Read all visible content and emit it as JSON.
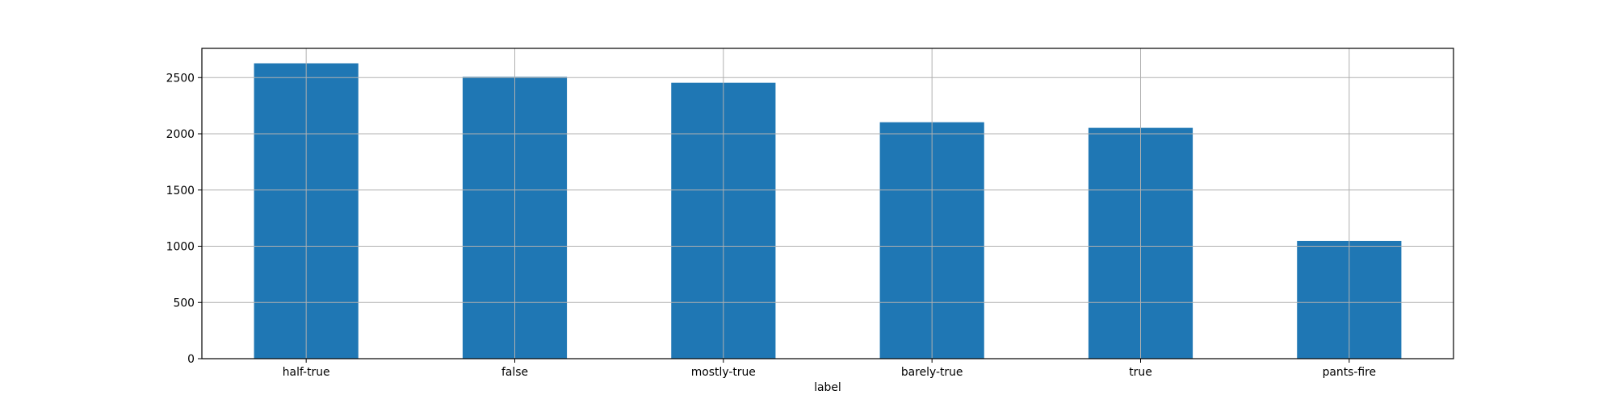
{
  "chart_data": {
    "type": "bar",
    "title": "",
    "xlabel": "label",
    "ylabel": "",
    "categories": [
      "half-true",
      "false",
      "mostly-true",
      "barely-true",
      "true",
      "pants-fire"
    ],
    "values": [
      2627,
      2507,
      2454,
      2103,
      2053,
      1047
    ],
    "ylim": [
      0,
      2760
    ],
    "yticks": [
      0,
      500,
      1000,
      1500,
      2000,
      2500
    ],
    "grid": true,
    "legend": "none",
    "bar_color": "#1f77b4",
    "grid_color": "#b0b0b0"
  }
}
